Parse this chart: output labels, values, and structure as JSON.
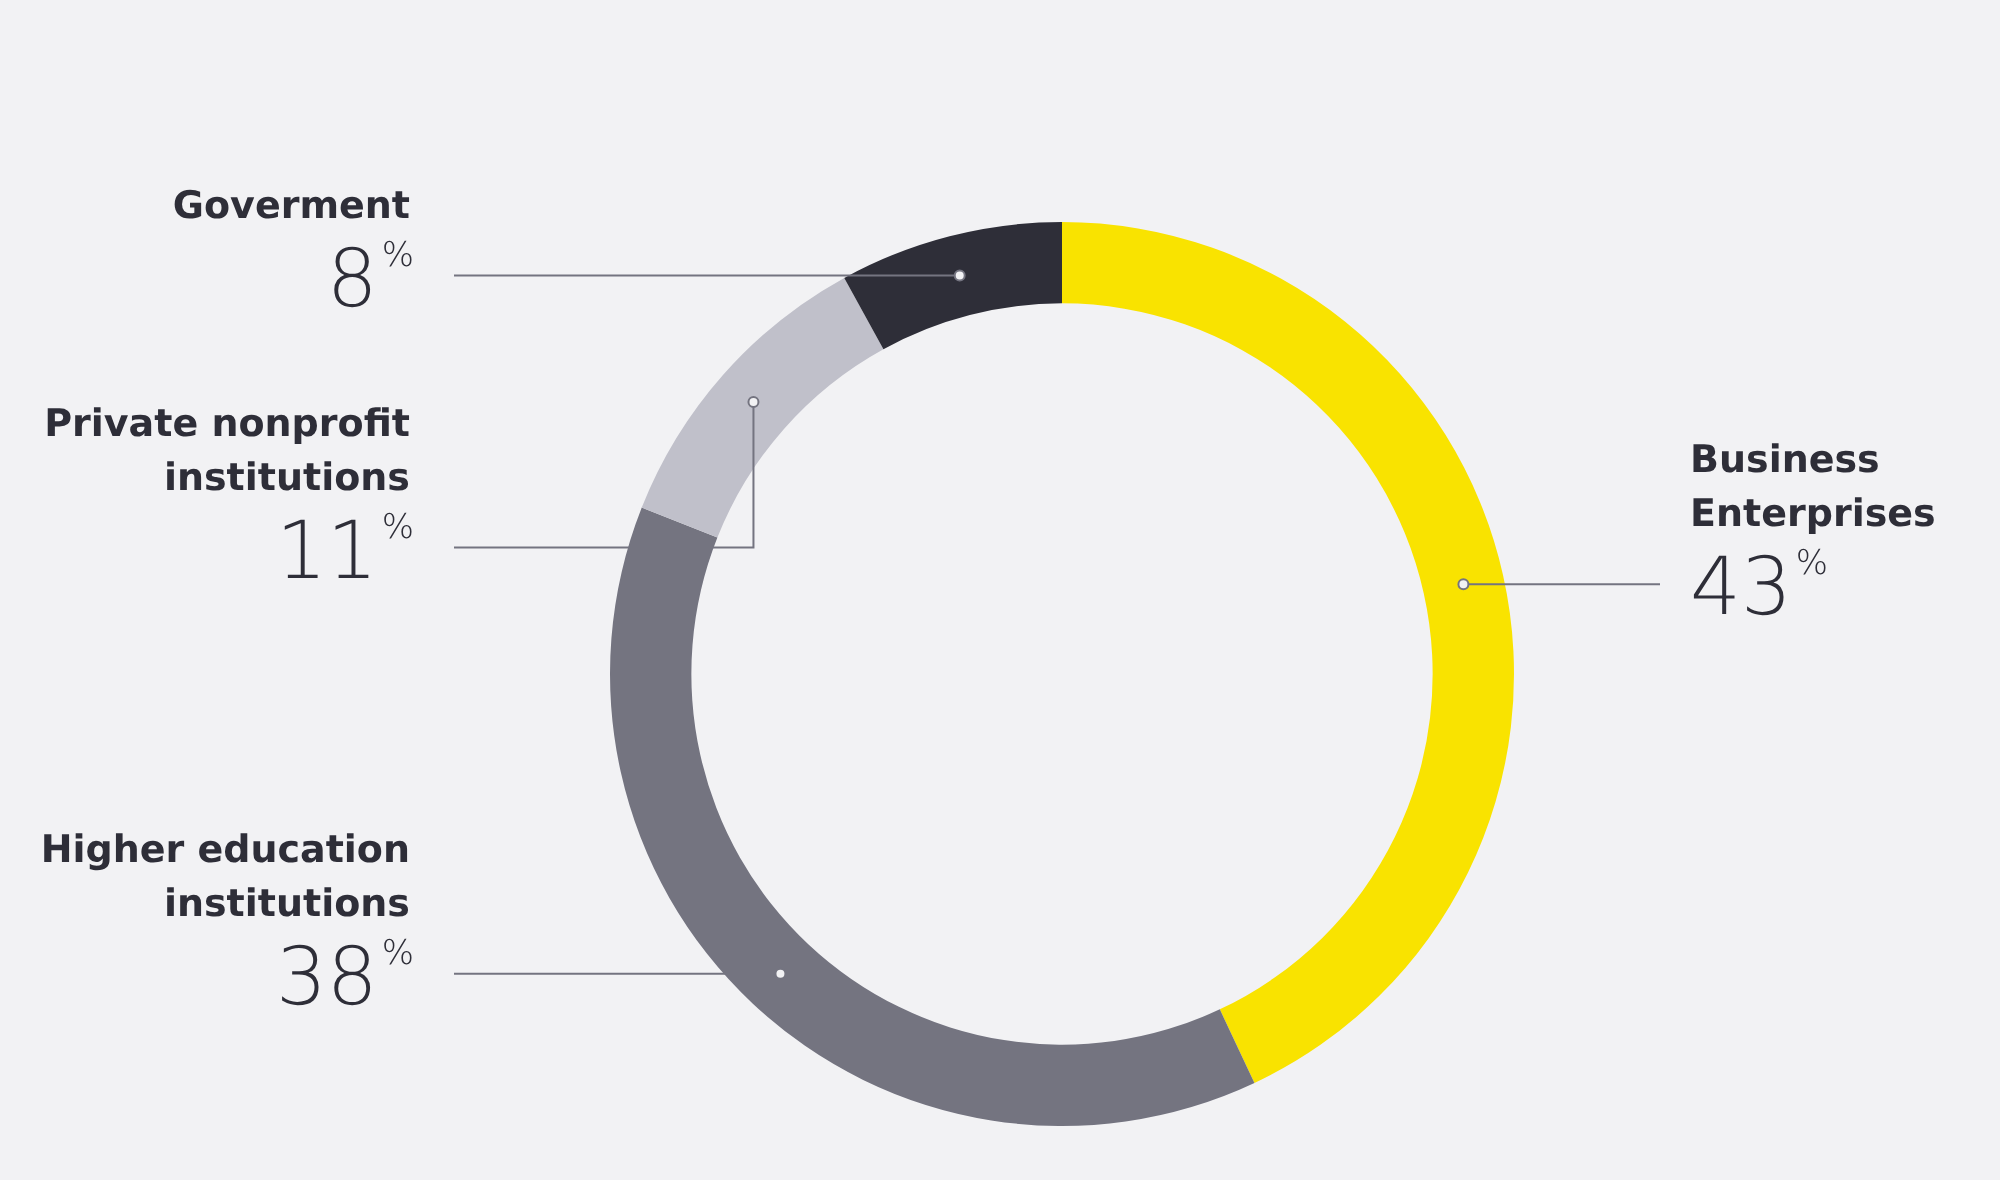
{
  "chart_data": {
    "type": "donut",
    "categories": [
      "Business Enterprises",
      "Higher education institutions",
      "Private nonprofit institutions",
      "Goverment"
    ],
    "values": [
      43,
      38,
      11,
      8
    ],
    "colors": [
      "#f9e300",
      "#747480",
      "#c0c0ca",
      "#2e2e38"
    ],
    "value_labels": [
      "43%",
      "38%",
      "11%",
      "8%"
    ],
    "legend": false
  }
}
